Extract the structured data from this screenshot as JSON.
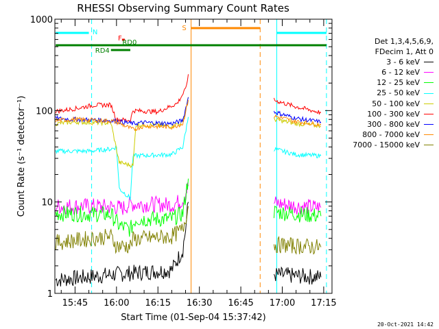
{
  "chart_data": {
    "type": "line",
    "title": "RHESSI Observing Summary Count Rates",
    "xlabel": "Start Time (01-Sep-04 15:37:42)",
    "ylabel": "Count Rate (s⁻¹ detector⁻¹)",
    "x_ticks": [
      "15:45",
      "16:00",
      "16:15",
      "16:30",
      "16:45",
      "17:00",
      "17:15"
    ],
    "x_range": [
      "15:37:42",
      "17:18:00"
    ],
    "y_scale": "log",
    "ylim": [
      1,
      1000
    ],
    "y_ticks": [
      "1",
      "10",
      "100",
      "1000"
    ],
    "legend_header": [
      "Det 1,3,4,5,6,9,",
      "FDecim 1, Att 0"
    ],
    "legend_placement": "right",
    "series": [
      {
        "name": "3 - 6 keV",
        "color": "#000000",
        "segments": [
          [
            [
              "15:38",
              1.4
            ],
            [
              "15:58",
              1.6
            ],
            [
              "16:20",
              1.8
            ],
            [
              "16:24",
              3
            ],
            [
              "16:25",
              5
            ],
            [
              "16:26",
              10
            ]
          ],
          [
            [
              "16:57",
              1.6
            ],
            [
              "17:14",
              1.5
            ]
          ]
        ]
      },
      {
        "name": "6 - 12 keV",
        "color": "#ff00ff",
        "segments": [
          [
            [
              "15:38",
              9.0
            ],
            [
              "15:52",
              9.0
            ],
            [
              "16:00",
              8.8
            ],
            [
              "16:02",
              8.5
            ],
            [
              "16:05",
              9.5
            ],
            [
              "16:20",
              9.3
            ],
            [
              "16:24",
              10.5
            ],
            [
              "16:26",
              15
            ]
          ],
          [
            [
              "16:57",
              9.8
            ],
            [
              "17:05",
              9.0
            ],
            [
              "17:14",
              8.7
            ]
          ]
        ]
      },
      {
        "name": "12 - 25 keV",
        "color": "#00ff00",
        "segments": [
          [
            [
              "15:38",
              7.5
            ],
            [
              "15:58",
              7.3
            ],
            [
              "16:01",
              5.5
            ],
            [
              "16:05",
              5.0
            ],
            [
              "16:07",
              6.5
            ],
            [
              "16:20",
              6.5
            ],
            [
              "16:24",
              7.5
            ],
            [
              "16:26",
              18
            ]
          ],
          [
            [
              "16:57",
              7.8
            ],
            [
              "17:14",
              7.0
            ]
          ]
        ]
      },
      {
        "name": "25 - 50 keV",
        "color": "#00ffff",
        "segments": [
          [
            [
              "15:38",
              36
            ],
            [
              "15:50",
              36
            ],
            [
              "15:58",
              38
            ],
            [
              "16:00",
              40
            ],
            [
              "16:01",
              14
            ],
            [
              "16:05",
              11
            ],
            [
              "16:06",
              32
            ],
            [
              "16:20",
              33
            ],
            [
              "16:24",
              40
            ],
            [
              "16:26",
              85
            ]
          ],
          [
            [
              "16:57",
              38
            ],
            [
              "17:05",
              33
            ],
            [
              "17:14",
              32
            ]
          ]
        ]
      },
      {
        "name": "50 - 100 keV",
        "color": "#cccc00",
        "segments": [
          [
            [
              "15:38",
              72
            ],
            [
              "15:45",
              75
            ],
            [
              "15:58",
              73
            ],
            [
              "16:01",
              27
            ],
            [
              "16:06",
              25
            ],
            [
              "16:07",
              70
            ],
            [
              "16:20",
              68
            ],
            [
              "16:24",
              74
            ],
            [
              "16:26",
              140
            ]
          ],
          [
            [
              "16:57",
              80
            ],
            [
              "17:05",
              72
            ],
            [
              "17:14",
              68
            ]
          ]
        ]
      },
      {
        "name": "100 - 300 keV",
        "color": "#ff0000",
        "segments": [
          [
            [
              "15:38",
              98
            ],
            [
              "15:45",
              105
            ],
            [
              "15:52",
              115
            ],
            [
              "15:58",
              115
            ],
            [
              "16:00",
              80
            ],
            [
              "16:05",
              78
            ],
            [
              "16:06",
              100
            ],
            [
              "16:15",
              97
            ],
            [
              "16:22",
              120
            ],
            [
              "16:25",
              170
            ],
            [
              "16:26",
              250
            ]
          ],
          [
            [
              "16:57",
              130
            ],
            [
              "17:05",
              110
            ],
            [
              "17:14",
              95
            ]
          ]
        ]
      },
      {
        "name": "300 - 800 keV",
        "color": "#0000ff",
        "segments": [
          [
            [
              "15:38",
              82
            ],
            [
              "15:45",
              80
            ],
            [
              "15:58",
              78
            ],
            [
              "16:01",
              76
            ],
            [
              "16:06",
              72
            ],
            [
              "16:10",
              74
            ],
            [
              "16:20",
              72
            ],
            [
              "16:24",
              78
            ],
            [
              "16:26",
              140
            ]
          ],
          [
            [
              "16:57",
              97
            ],
            [
              "17:05",
              82
            ],
            [
              "17:14",
              75
            ]
          ]
        ]
      },
      {
        "name": "800 - 7000 keV",
        "color": "#ff8800",
        "segments": [
          [
            [
              "15:38",
              78
            ],
            [
              "15:45",
              80
            ],
            [
              "15:58",
              77
            ],
            [
              "16:00",
              75
            ],
            [
              "16:06",
              62
            ],
            [
              "16:10",
              68
            ],
            [
              "16:20",
              66
            ],
            [
              "16:24",
              72
            ],
            [
              "16:26",
              130
            ]
          ],
          [
            [
              "16:57",
              87
            ],
            [
              "17:05",
              76
            ],
            [
              "17:14",
              70
            ]
          ]
        ]
      },
      {
        "name": "7000 - 15000 keV",
        "color": "#808000",
        "segments": [
          [
            [
              "15:38",
              3.6
            ],
            [
              "15:58",
              4.2
            ],
            [
              "16:00",
              3.3
            ],
            [
              "16:05",
              3.3
            ],
            [
              "16:06",
              3.9
            ],
            [
              "16:20",
              4.2
            ],
            [
              "16:24",
              5
            ],
            [
              "16:26",
              9
            ]
          ],
          [
            [
              "16:57",
              3.4
            ],
            [
              "17:14",
              3.2
            ]
          ]
        ]
      }
    ],
    "vertical_lines": [
      {
        "time": "15:37:42",
        "color": "#00ffff",
        "style": "solid"
      },
      {
        "time": "15:51",
        "color": "#00ffff",
        "style": "dashed"
      },
      {
        "time": "16:27",
        "color": "#ff8800",
        "style": "solid"
      },
      {
        "time": "16:52",
        "color": "#ff8800",
        "style": "dashed"
      },
      {
        "time": "16:58",
        "color": "#00ffff",
        "style": "solid"
      },
      {
        "time": "17:16",
        "color": "#00ffff",
        "style": "dashed"
      }
    ],
    "flags": [
      {
        "label": "N",
        "color": "#00ffff",
        "start": "15:38",
        "end": "15:50"
      },
      {
        "label": "",
        "color": "#00ffff",
        "start": "16:58",
        "end": "17:16"
      },
      {
        "label": "S",
        "color": "#ff8800",
        "start": "16:27",
        "end": "16:52"
      },
      {
        "label": "",
        "color": "#008000",
        "start": "15:38",
        "end": "17:16"
      },
      {
        "label": "F",
        "color": "#ff0000",
        "start": "16:02",
        "end": "16:03"
      },
      {
        "label": "RD0",
        "color": "#008000",
        "start": "16:01",
        "end": "16:07"
      },
      {
        "label": "RD4",
        "color": "#008000",
        "start": "15:58",
        "end": "16:05"
      }
    ],
    "grid": false
  },
  "timestamp": "20-Oct-2021 14:42"
}
